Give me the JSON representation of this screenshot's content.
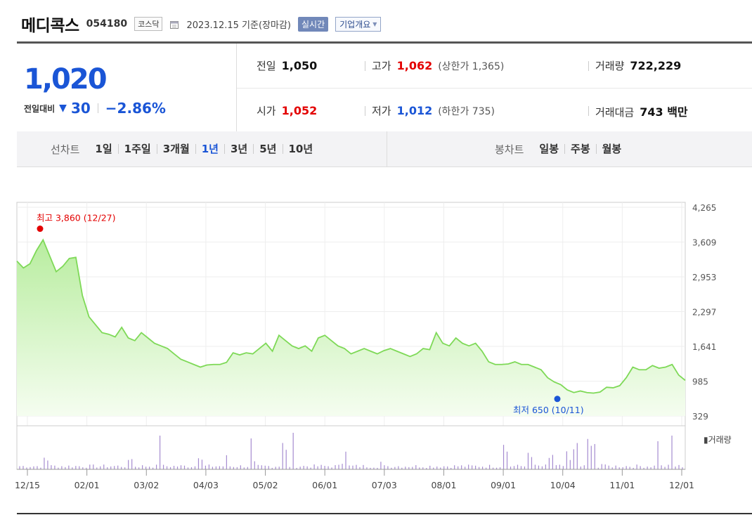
{
  "header": {
    "company_name": "메디콕스",
    "stock_code": "054180",
    "market_badge": "코스닥",
    "calendar_icon": "calendar-icon",
    "date_text": "2023.12.15 기준(장마감)",
    "realtime_button": "실시간",
    "corp_overview_button": "기업개요"
  },
  "summary": {
    "current_price": "1,020",
    "change_label": "전일대비",
    "change_direction": "down",
    "change_value": "30",
    "change_percent": "−2.86%",
    "prev_close_label": "전일",
    "prev_close": "1,050",
    "open_label": "시가",
    "open": "1,052",
    "high_label": "고가",
    "high": "1,062",
    "upper_limit_label": "(상한가",
    "upper_limit": "1,365)",
    "low_label": "저가",
    "low": "1,012",
    "lower_limit_label": "(하한가",
    "lower_limit": "735)",
    "volume_label": "거래량",
    "volume": "722,229",
    "trade_amount_label": "거래대금",
    "trade_amount": "743",
    "trade_amount_unit": "백만",
    "colors": {
      "up": "#e30000",
      "down": "#1a55d6"
    }
  },
  "tabs": {
    "line_chart_title": "선차트",
    "line_periods": [
      "1일",
      "1주일",
      "3개월",
      "1년",
      "3년",
      "5년",
      "10년"
    ],
    "active_period": "1년",
    "candle_chart_title": "봉차트",
    "candle_periods": [
      "일봉",
      "주봉",
      "월봉"
    ]
  },
  "chart_data": {
    "type": "area",
    "title": "",
    "y_ticks": [
      "4,265",
      "3,609",
      "2,953",
      "2,297",
      "1,641",
      "985",
      "329"
    ],
    "y_tick_values": [
      4265,
      3609,
      2953,
      2297,
      1641,
      985,
      329
    ],
    "ylim": [
      329,
      4265
    ],
    "x_ticks": [
      "12/15",
      "02/01",
      "03/02",
      "04/03",
      "05/02",
      "06/01",
      "07/03",
      "08/01",
      "09/01",
      "10/04",
      "11/01",
      "12/01"
    ],
    "high_annotation": "최고 3,860 (12/27)",
    "low_annotation": "최저 650 (10/11)",
    "high_value": 3860,
    "low_value": 650,
    "volume_label": "거래량",
    "line_color": "#7ed957",
    "volume_color": "#a58bd0",
    "price_series": [
      3250,
      3120,
      3200,
      3450,
      3650,
      3350,
      3050,
      3150,
      3300,
      3320,
      2600,
      2200,
      2050,
      1900,
      1870,
      1820,
      2000,
      1800,
      1750,
      1900,
      1800,
      1700,
      1650,
      1600,
      1500,
      1400,
      1350,
      1300,
      1250,
      1290,
      1300,
      1300,
      1340,
      1520,
      1480,
      1520,
      1500,
      1600,
      1700,
      1550,
      1850,
      1750,
      1650,
      1600,
      1650,
      1550,
      1800,
      1850,
      1750,
      1650,
      1600,
      1500,
      1550,
      1600,
      1550,
      1500,
      1560,
      1600,
      1550,
      1500,
      1450,
      1500,
      1600,
      1580,
      1900,
      1700,
      1650,
      1800,
      1700,
      1650,
      1700,
      1550,
      1350,
      1300,
      1300,
      1310,
      1350,
      1300,
      1300,
      1250,
      1200,
      1050,
      970,
      920,
      820,
      770,
      800,
      770,
      760,
      780,
      870,
      860,
      900,
      1050,
      1250,
      1200,
      1200,
      1280,
      1230,
      1250,
      1300,
      1100,
      1000
    ]
  }
}
